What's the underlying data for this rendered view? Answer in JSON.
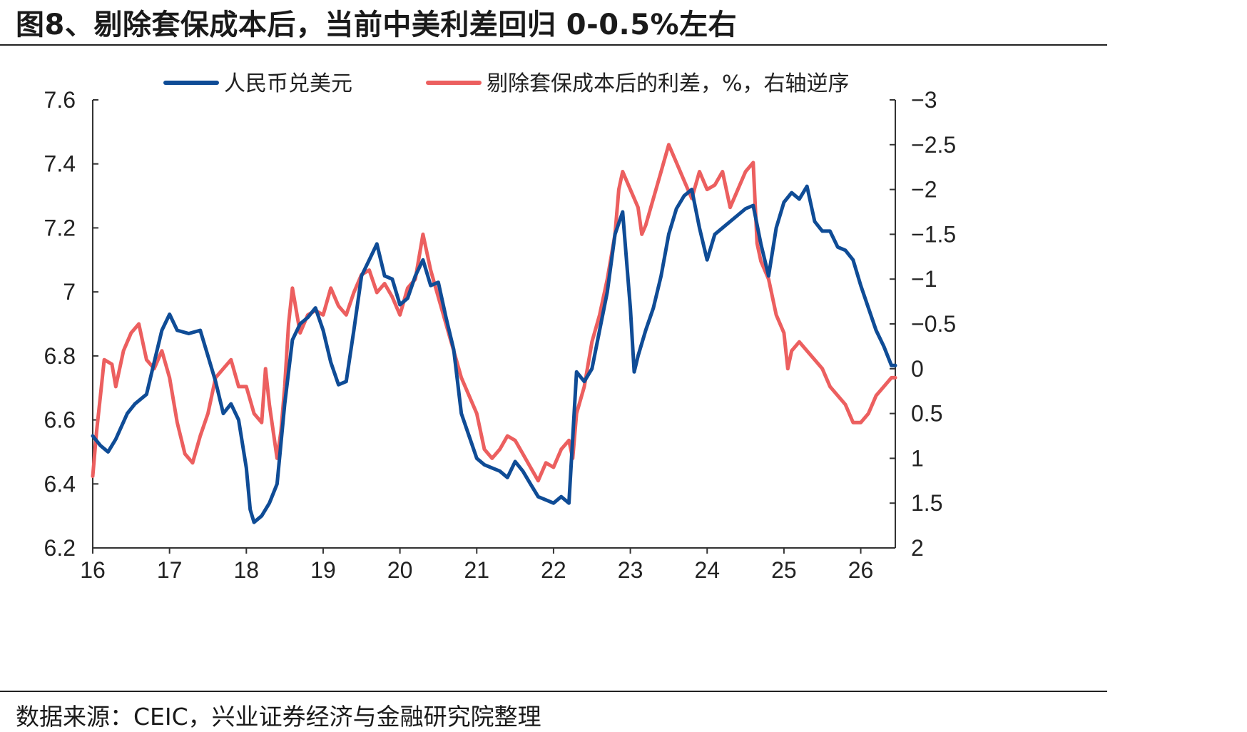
{
  "title": "图8、剔除套保成本后，当前中美利差回归 0-0.5%左右",
  "source": "数据来源：CEIC，兴业证券经济与金融研究院整理",
  "chart_data": {
    "type": "line",
    "x_ticks": [
      "16",
      "17",
      "18",
      "19",
      "20",
      "21",
      "22",
      "23",
      "24",
      "25",
      "26"
    ],
    "xlim": [
      16,
      26.45
    ],
    "left_axis": {
      "ticks": [
        "7.6",
        "7.4",
        "7.2",
        "7",
        "6.8",
        "6.6",
        "6.4",
        "6.2"
      ],
      "ylim": [
        6.2,
        7.6
      ]
    },
    "right_axis": {
      "ticks": [
        "−3",
        "−2.5",
        "−2",
        "−1.5",
        "−1",
        "−0.5",
        "0",
        "0.5",
        "1",
        "1.5",
        "2"
      ],
      "ylim": [
        -3,
        2
      ],
      "inverted": true
    },
    "legend_placement": "top",
    "series": [
      {
        "name": "人民币兑美元",
        "axis": "left",
        "color": "#0f4c96",
        "points": [
          [
            16.0,
            6.55
          ],
          [
            16.1,
            6.52
          ],
          [
            16.2,
            6.5
          ],
          [
            16.3,
            6.54
          ],
          [
            16.45,
            6.62
          ],
          [
            16.55,
            6.65
          ],
          [
            16.7,
            6.68
          ],
          [
            16.8,
            6.78
          ],
          [
            16.9,
            6.88
          ],
          [
            17.0,
            6.93
          ],
          [
            17.1,
            6.88
          ],
          [
            17.25,
            6.87
          ],
          [
            17.4,
            6.88
          ],
          [
            17.5,
            6.8
          ],
          [
            17.6,
            6.72
          ],
          [
            17.7,
            6.62
          ],
          [
            17.8,
            6.65
          ],
          [
            17.9,
            6.6
          ],
          [
            18.0,
            6.45
          ],
          [
            18.05,
            6.32
          ],
          [
            18.1,
            6.28
          ],
          [
            18.2,
            6.3
          ],
          [
            18.3,
            6.34
          ],
          [
            18.4,
            6.4
          ],
          [
            18.5,
            6.65
          ],
          [
            18.6,
            6.85
          ],
          [
            18.7,
            6.9
          ],
          [
            18.8,
            6.92
          ],
          [
            18.9,
            6.95
          ],
          [
            19.0,
            6.88
          ],
          [
            19.1,
            6.78
          ],
          [
            19.2,
            6.71
          ],
          [
            19.3,
            6.72
          ],
          [
            19.4,
            6.88
          ],
          [
            19.5,
            7.05
          ],
          [
            19.6,
            7.1
          ],
          [
            19.7,
            7.15
          ],
          [
            19.8,
            7.05
          ],
          [
            19.9,
            7.04
          ],
          [
            20.0,
            6.96
          ],
          [
            20.1,
            6.98
          ],
          [
            20.2,
            7.05
          ],
          [
            20.3,
            7.1
          ],
          [
            20.4,
            7.02
          ],
          [
            20.5,
            7.03
          ],
          [
            20.6,
            6.92
          ],
          [
            20.7,
            6.82
          ],
          [
            20.8,
            6.62
          ],
          [
            20.9,
            6.55
          ],
          [
            21.0,
            6.48
          ],
          [
            21.1,
            6.46
          ],
          [
            21.2,
            6.45
          ],
          [
            21.3,
            6.44
          ],
          [
            21.4,
            6.42
          ],
          [
            21.5,
            6.47
          ],
          [
            21.6,
            6.44
          ],
          [
            21.7,
            6.4
          ],
          [
            21.8,
            6.36
          ],
          [
            21.9,
            6.35
          ],
          [
            22.0,
            6.34
          ],
          [
            22.1,
            6.36
          ],
          [
            22.2,
            6.34
          ],
          [
            22.3,
            6.75
          ],
          [
            22.4,
            6.72
          ],
          [
            22.5,
            6.76
          ],
          [
            22.6,
            6.88
          ],
          [
            22.7,
            7.0
          ],
          [
            22.8,
            7.18
          ],
          [
            22.9,
            7.25
          ],
          [
            23.0,
            6.95
          ],
          [
            23.05,
            6.75
          ],
          [
            23.1,
            6.8
          ],
          [
            23.2,
            6.88
          ],
          [
            23.3,
            6.95
          ],
          [
            23.4,
            7.05
          ],
          [
            23.5,
            7.18
          ],
          [
            23.6,
            7.26
          ],
          [
            23.7,
            7.3
          ],
          [
            23.8,
            7.32
          ],
          [
            23.9,
            7.2
          ],
          [
            24.0,
            7.1
          ],
          [
            24.1,
            7.18
          ],
          [
            24.2,
            7.2
          ],
          [
            24.3,
            7.22
          ],
          [
            24.4,
            7.24
          ],
          [
            24.5,
            7.26
          ],
          [
            24.6,
            7.27
          ],
          [
            24.7,
            7.15
          ],
          [
            24.8,
            7.05
          ],
          [
            24.9,
            7.2
          ],
          [
            25.0,
            7.28
          ],
          [
            25.1,
            7.31
          ],
          [
            25.2,
            7.29
          ],
          [
            25.3,
            7.33
          ],
          [
            25.4,
            7.22
          ],
          [
            25.5,
            7.19
          ],
          [
            25.6,
            7.19
          ],
          [
            25.7,
            7.14
          ],
          [
            25.8,
            7.13
          ],
          [
            25.9,
            7.1
          ],
          [
            26.0,
            7.02
          ],
          [
            26.1,
            6.95
          ],
          [
            26.2,
            6.88
          ],
          [
            26.3,
            6.83
          ],
          [
            26.4,
            6.77
          ],
          [
            26.45,
            6.77
          ]
        ]
      },
      {
        "name": "剔除套保成本后的利差，%，右轴逆序",
        "axis": "right",
        "color": "#ec5f5f",
        "points": [
          [
            16.0,
            1.2
          ],
          [
            16.05,
            0.7
          ],
          [
            16.1,
            0.3
          ],
          [
            16.15,
            -0.1
          ],
          [
            16.25,
            -0.05
          ],
          [
            16.3,
            0.2
          ],
          [
            16.4,
            -0.2
          ],
          [
            16.5,
            -0.4
          ],
          [
            16.6,
            -0.5
          ],
          [
            16.7,
            -0.1
          ],
          [
            16.8,
            0.0
          ],
          [
            16.9,
            -0.2
          ],
          [
            17.0,
            0.1
          ],
          [
            17.1,
            0.6
          ],
          [
            17.2,
            0.95
          ],
          [
            17.3,
            1.05
          ],
          [
            17.4,
            0.75
          ],
          [
            17.5,
            0.5
          ],
          [
            17.6,
            0.1
          ],
          [
            17.7,
            0.0
          ],
          [
            17.8,
            -0.1
          ],
          [
            17.9,
            0.2
          ],
          [
            18.0,
            0.2
          ],
          [
            18.1,
            0.5
          ],
          [
            18.2,
            0.6
          ],
          [
            18.25,
            0.0
          ],
          [
            18.3,
            0.4
          ],
          [
            18.4,
            1.0
          ],
          [
            18.45,
            0.7
          ],
          [
            18.5,
            0.2
          ],
          [
            18.55,
            -0.5
          ],
          [
            18.6,
            -0.9
          ],
          [
            18.7,
            -0.4
          ],
          [
            18.8,
            -0.6
          ],
          [
            18.9,
            -0.65
          ],
          [
            19.0,
            -0.6
          ],
          [
            19.1,
            -0.9
          ],
          [
            19.2,
            -0.7
          ],
          [
            19.3,
            -0.6
          ],
          [
            19.4,
            -0.85
          ],
          [
            19.5,
            -1.05
          ],
          [
            19.6,
            -1.1
          ],
          [
            19.7,
            -0.85
          ],
          [
            19.8,
            -0.95
          ],
          [
            19.9,
            -0.8
          ],
          [
            20.0,
            -0.6
          ],
          [
            20.1,
            -0.9
          ],
          [
            20.2,
            -1.0
          ],
          [
            20.3,
            -1.5
          ],
          [
            20.35,
            -1.3
          ],
          [
            20.4,
            -1.1
          ],
          [
            20.5,
            -0.8
          ],
          [
            20.6,
            -0.5
          ],
          [
            20.7,
            -0.2
          ],
          [
            20.8,
            0.1
          ],
          [
            20.9,
            0.3
          ],
          [
            21.0,
            0.5
          ],
          [
            21.1,
            0.9
          ],
          [
            21.2,
            1.0
          ],
          [
            21.3,
            0.9
          ],
          [
            21.4,
            0.75
          ],
          [
            21.5,
            0.8
          ],
          [
            21.6,
            0.95
          ],
          [
            21.7,
            1.1
          ],
          [
            21.8,
            1.25
          ],
          [
            21.9,
            1.05
          ],
          [
            22.0,
            1.1
          ],
          [
            22.1,
            0.9
          ],
          [
            22.2,
            0.8
          ],
          [
            22.25,
            1.0
          ],
          [
            22.3,
            0.5
          ],
          [
            22.4,
            0.2
          ],
          [
            22.5,
            -0.3
          ],
          [
            22.6,
            -0.6
          ],
          [
            22.7,
            -1.0
          ],
          [
            22.8,
            -1.5
          ],
          [
            22.85,
            -2.0
          ],
          [
            22.9,
            -2.2
          ],
          [
            23.0,
            -2.0
          ],
          [
            23.1,
            -1.8
          ],
          [
            23.15,
            -1.5
          ],
          [
            23.2,
            -1.6
          ],
          [
            23.3,
            -1.9
          ],
          [
            23.4,
            -2.2
          ],
          [
            23.5,
            -2.5
          ],
          [
            23.6,
            -2.3
          ],
          [
            23.7,
            -2.1
          ],
          [
            23.8,
            -1.9
          ],
          [
            23.9,
            -2.2
          ],
          [
            24.0,
            -2.0
          ],
          [
            24.1,
            -2.05
          ],
          [
            24.2,
            -2.2
          ],
          [
            24.3,
            -1.8
          ],
          [
            24.4,
            -2.0
          ],
          [
            24.5,
            -2.2
          ],
          [
            24.6,
            -2.3
          ],
          [
            24.65,
            -1.4
          ],
          [
            24.7,
            -1.2
          ],
          [
            24.8,
            -1.0
          ],
          [
            24.9,
            -0.6
          ],
          [
            25.0,
            -0.4
          ],
          [
            25.05,
            0.0
          ],
          [
            25.1,
            -0.2
          ],
          [
            25.2,
            -0.3
          ],
          [
            25.3,
            -0.2
          ],
          [
            25.4,
            -0.1
          ],
          [
            25.5,
            0.0
          ],
          [
            25.6,
            0.2
          ],
          [
            25.7,
            0.3
          ],
          [
            25.8,
            0.4
          ],
          [
            25.9,
            0.6
          ],
          [
            26.0,
            0.6
          ],
          [
            26.1,
            0.5
          ],
          [
            26.2,
            0.3
          ],
          [
            26.3,
            0.2
          ],
          [
            26.4,
            0.1
          ],
          [
            26.45,
            0.1
          ]
        ]
      }
    ]
  }
}
